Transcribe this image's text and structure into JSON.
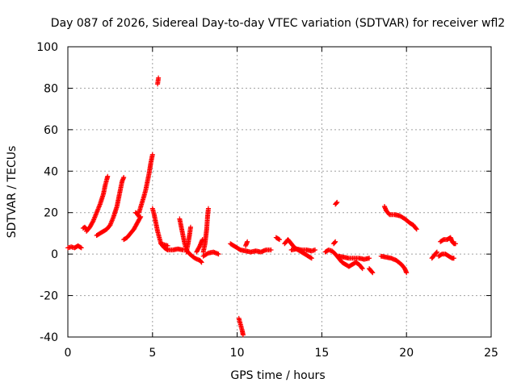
{
  "chart_data": {
    "type": "scatter",
    "title": "Day 087 of 2026, Sidereal Day-to-day VTEC variation (SDTVAR) for receiver wfl2",
    "xlabel": "GPS time / hours",
    "ylabel": "SDTVAR / TECUs",
    "xlim": [
      0,
      25
    ],
    "ylim": [
      -40,
      100
    ],
    "xticks": [
      "0",
      "5",
      "10",
      "15",
      "20",
      "25"
    ],
    "yticks": [
      "-40",
      "-20",
      "0",
      "20",
      "40",
      "60",
      "80",
      "100"
    ],
    "grid": true,
    "marker": "+",
    "color": "#ff0000",
    "series": [
      {
        "segments": [
          [
            [
              0.0,
              3
            ],
            [
              0.2,
              3.5
            ],
            [
              0.4,
              3
            ],
            [
              0.6,
              4
            ],
            [
              0.8,
              3
            ]
          ],
          [
            [
              0.9,
              12.5
            ],
            [
              1.0,
              13
            ],
            [
              1.1,
              12
            ]
          ],
          [
            [
              1.1,
              11
            ],
            [
              1.3,
              13
            ],
            [
              1.5,
              16
            ],
            [
              1.7,
              20
            ],
            [
              1.9,
              24
            ],
            [
              2.1,
              29
            ],
            [
              2.2,
              33
            ],
            [
              2.3,
              36
            ],
            [
              2.35,
              37.5
            ]
          ],
          [
            [
              1.7,
              9
            ],
            [
              1.9,
              10
            ],
            [
              2.1,
              11
            ],
            [
              2.3,
              12
            ],
            [
              2.5,
              14
            ],
            [
              2.7,
              18
            ],
            [
              2.9,
              23
            ],
            [
              3.0,
              27
            ],
            [
              3.1,
              31
            ],
            [
              3.2,
              35
            ],
            [
              3.3,
              37
            ]
          ],
          [
            [
              3.3,
              7
            ],
            [
              3.5,
              8
            ],
            [
              3.7,
              10
            ],
            [
              3.9,
              12
            ],
            [
              4.1,
              15
            ],
            [
              4.3,
              18
            ]
          ],
          [
            [
              4.0,
              20
            ],
            [
              4.1,
              19.5
            ],
            [
              4.2,
              18
            ]
          ],
          [
            [
              4.2,
              20
            ],
            [
              4.35,
              24
            ],
            [
              4.5,
              28
            ],
            [
              4.6,
              31
            ],
            [
              4.7,
              35
            ],
            [
              4.8,
              39
            ],
            [
              4.9,
              44
            ],
            [
              5.0,
              48
            ]
          ],
          [
            [
              5.0,
              22
            ],
            [
              5.1,
              19
            ],
            [
              5.2,
              15
            ],
            [
              5.3,
              11
            ],
            [
              5.4,
              8
            ],
            [
              5.5,
              5
            ],
            [
              5.7,
              3
            ],
            [
              5.9,
              2
            ],
            [
              6.2,
              2
            ],
            [
              6.5,
              2.5
            ],
            [
              6.8,
              2
            ]
          ],
          [
            [
              5.3,
              82
            ],
            [
              5.35,
              85
            ]
          ],
          [
            [
              5.5,
              5
            ],
            [
              5.7,
              4.5
            ],
            [
              5.9,
              4
            ]
          ],
          [
            [
              6.6,
              17
            ],
            [
              6.7,
              13
            ],
            [
              6.8,
              9
            ],
            [
              6.9,
              5
            ],
            [
              7.0,
              2
            ],
            [
              7.2,
              0
            ],
            [
              7.5,
              -2
            ],
            [
              7.8,
              -3
            ],
            [
              7.9,
              -4
            ]
          ],
          [
            [
              7.0,
              1
            ],
            [
              7.1,
              5
            ],
            [
              7.2,
              10
            ],
            [
              7.25,
              13
            ]
          ],
          [
            [
              7.6,
              1
            ],
            [
              7.8,
              4
            ],
            [
              7.95,
              7
            ]
          ],
          [
            [
              8.0,
              1
            ],
            [
              8.1,
              5
            ],
            [
              8.2,
              12
            ],
            [
              8.25,
              18
            ],
            [
              8.3,
              22
            ]
          ],
          [
            [
              8.0,
              -1
            ],
            [
              8.3,
              0.5
            ],
            [
              8.6,
              1
            ],
            [
              8.9,
              0
            ]
          ],
          [
            [
              9.6,
              5
            ],
            [
              9.8,
              4
            ],
            [
              10.0,
              3
            ],
            [
              10.2,
              2
            ],
            [
              10.5,
              1.5
            ],
            [
              10.8,
              1
            ],
            [
              11.1,
              1.5
            ],
            [
              11.4,
              1
            ],
            [
              11.7,
              2
            ],
            [
              12.0,
              2
            ]
          ],
          [
            [
              10.1,
              -31
            ],
            [
              10.2,
              -34
            ],
            [
              10.3,
              -37
            ],
            [
              10.35,
              -39
            ]
          ],
          [
            [
              10.5,
              4
            ],
            [
              10.6,
              6
            ]
          ],
          [
            [
              12.3,
              8
            ],
            [
              12.5,
              7
            ]
          ],
          [
            [
              12.8,
              5
            ],
            [
              13.0,
              7
            ],
            [
              13.2,
              5
            ],
            [
              13.4,
              3
            ],
            [
              13.6,
              2
            ],
            [
              13.8,
              1
            ],
            [
              14.0,
              0
            ],
            [
              14.2,
              -1
            ],
            [
              14.4,
              -2
            ]
          ],
          [
            [
              13.2,
              2
            ],
            [
              13.5,
              2.5
            ],
            [
              13.8,
              2
            ],
            [
              14.1,
              2
            ],
            [
              14.4,
              1.5
            ],
            [
              14.6,
              2
            ]
          ],
          [
            [
              15.2,
              1
            ],
            [
              15.4,
              2
            ],
            [
              15.6,
              1.5
            ],
            [
              15.8,
              0
            ],
            [
              16.0,
              -2
            ],
            [
              16.2,
              -4
            ],
            [
              16.4,
              -5
            ],
            [
              16.6,
              -6
            ],
            [
              16.8,
              -5
            ],
            [
              17.0,
              -4
            ],
            [
              17.2,
              -5
            ],
            [
              17.4,
              -7
            ]
          ],
          [
            [
              15.7,
              5
            ],
            [
              15.8,
              6
            ]
          ],
          [
            [
              15.8,
              24
            ],
            [
              15.9,
              25
            ]
          ],
          [
            [
              16.0,
              -1
            ],
            [
              16.3,
              -1.5
            ],
            [
              16.6,
              -2
            ],
            [
              16.9,
              -2
            ],
            [
              17.2,
              -2
            ],
            [
              17.5,
              -2.5
            ],
            [
              17.8,
              -2
            ]
          ],
          [
            [
              17.8,
              -7
            ],
            [
              17.9,
              -8
            ],
            [
              18.0,
              -9
            ]
          ],
          [
            [
              18.5,
              -1
            ],
            [
              18.8,
              -1.5
            ],
            [
              19.1,
              -2
            ],
            [
              19.4,
              -3
            ],
            [
              19.7,
              -5
            ],
            [
              19.9,
              -7
            ],
            [
              20.0,
              -9
            ]
          ],
          [
            [
              18.7,
              23
            ],
            [
              18.8,
              21
            ],
            [
              19.0,
              19
            ],
            [
              19.3,
              19
            ],
            [
              19.6,
              18.5
            ],
            [
              19.9,
              17
            ],
            [
              20.2,
              15
            ],
            [
              20.4,
              14
            ],
            [
              20.6,
              12
            ]
          ],
          [
            [
              21.5,
              -2
            ],
            [
              21.6,
              -1
            ],
            [
              21.7,
              0
            ],
            [
              21.8,
              1
            ]
          ],
          [
            [
              21.9,
              -1
            ],
            [
              22.1,
              0
            ],
            [
              22.3,
              0
            ],
            [
              22.5,
              -1
            ],
            [
              22.7,
              -2
            ],
            [
              22.8,
              -2
            ]
          ],
          [
            [
              22.0,
              6
            ],
            [
              22.2,
              7
            ],
            [
              22.4,
              7
            ],
            [
              22.6,
              8
            ],
            [
              22.7,
              6
            ],
            [
              22.8,
              5
            ],
            [
              22.9,
              5
            ]
          ]
        ]
      }
    ]
  }
}
